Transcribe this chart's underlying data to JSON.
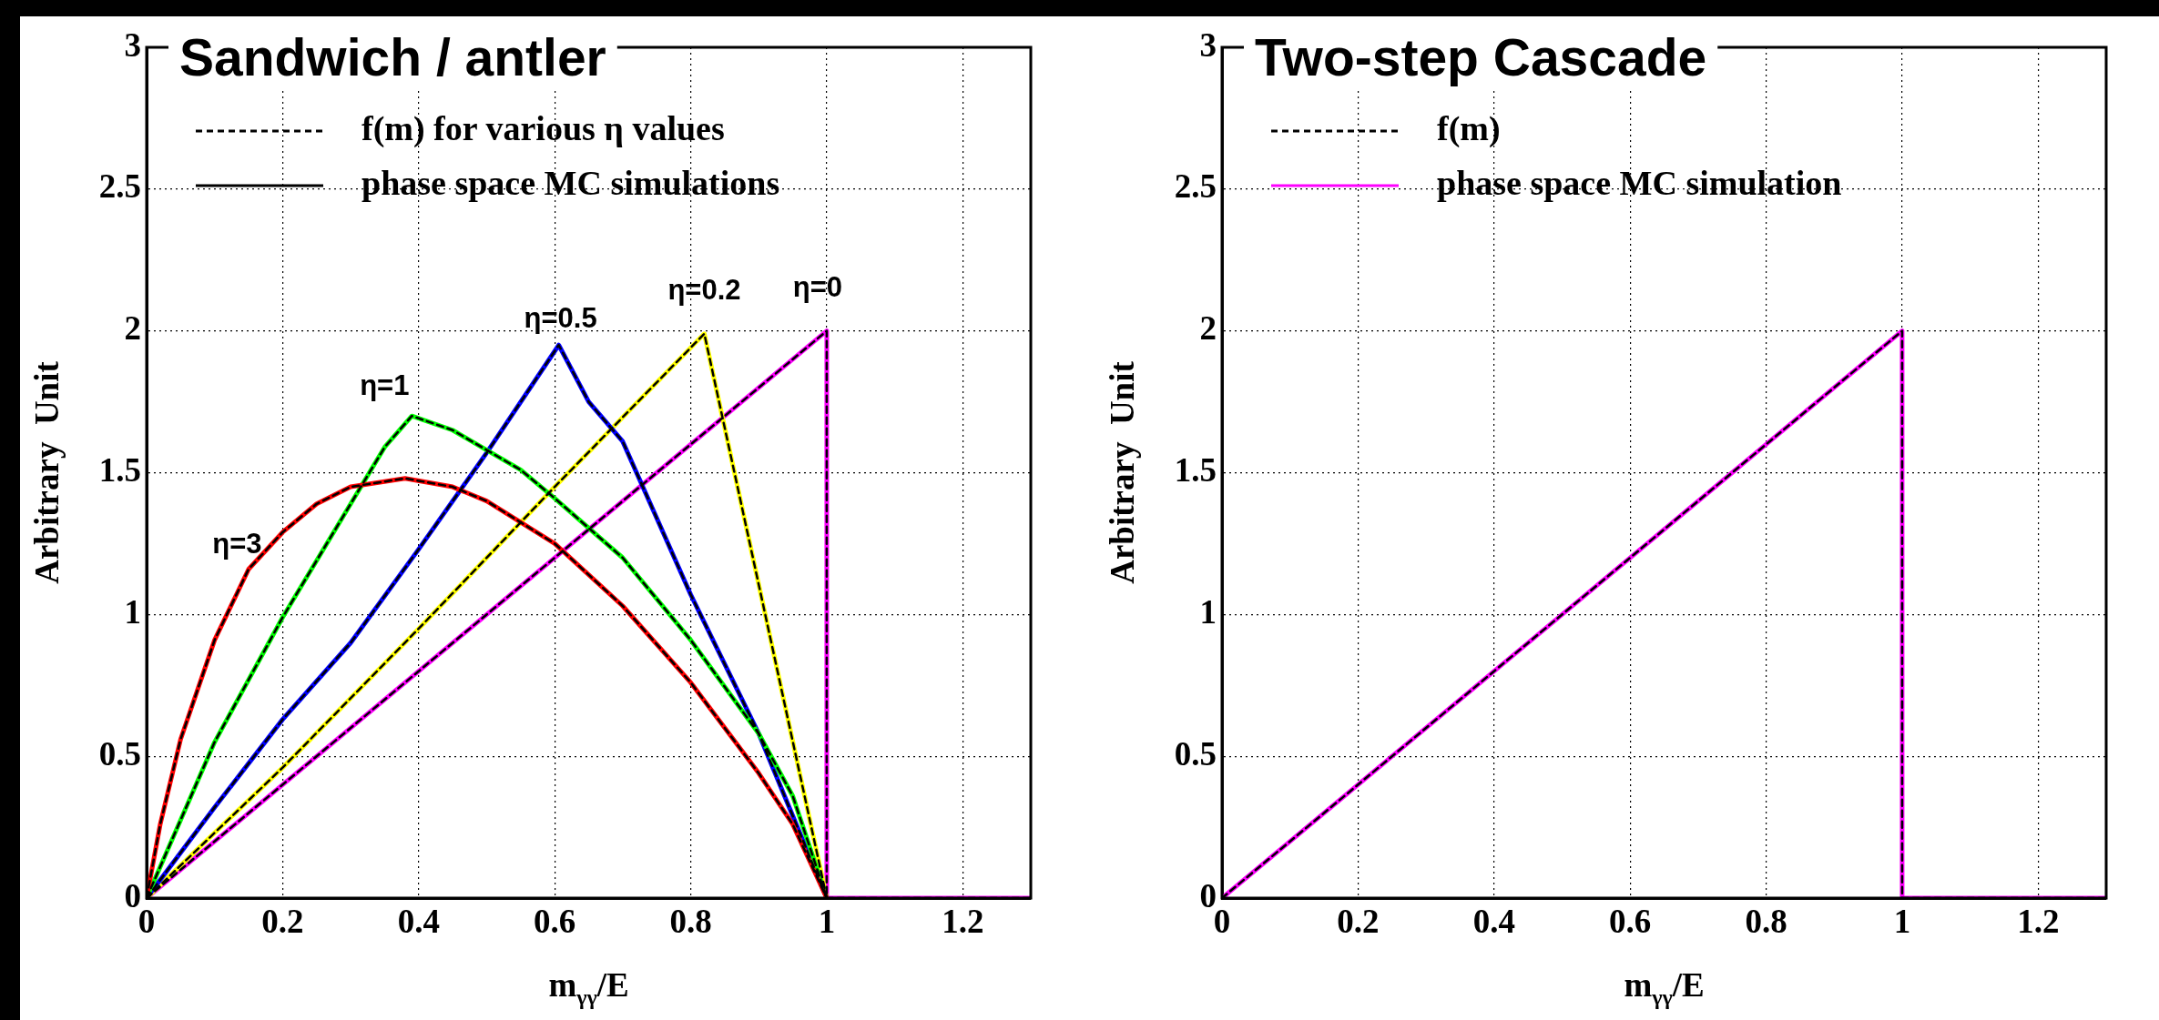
{
  "chart_data": [
    {
      "type": "line",
      "title": "Sandwich / antler",
      "xlabel": "m$_{γγ}$/E",
      "ylabel": "Arbitrary  Unit",
      "xlim": [
        0,
        1.3
      ],
      "ylim": [
        0,
        3
      ],
      "xticks": [
        0,
        0.2,
        0.4,
        0.6,
        0.8,
        1,
        1.2
      ],
      "yticks": [
        0,
        0.5,
        1,
        1.5,
        2,
        2.5,
        3
      ],
      "grid": true,
      "legend": "top left",
      "marker": "none",
      "series": [
        {
          "name": "f(m) for various η values",
          "color": "#000000",
          "line_style": "dashed",
          "x": [
            0,
            0.02,
            0.05,
            0.1,
            0.15,
            0.2,
            0.25,
            0.3,
            0.38,
            0.45,
            0.5,
            0.6,
            0.7,
            0.8,
            0.9,
            0.95,
            1
          ],
          "values": [
            0,
            0.26,
            0.56,
            0.91,
            1.16,
            1.29,
            1.39,
            1.45,
            1.48,
            1.45,
            1.4,
            1.25,
            1.03,
            0.76,
            0.44,
            0.26,
            0
          ]
        },
        {
          "name": "phase space MC simulations",
          "color": "#000000",
          "line_style": "solid"
        },
        {
          "color": "#000000",
          "line_style": "dashed",
          "x": [
            0,
            0.1,
            0.2,
            0.3,
            0.35,
            0.39,
            0.45,
            0.5,
            0.55,
            0.6,
            0.7,
            0.8,
            0.9,
            0.95,
            1
          ],
          "values": [
            0,
            0.55,
            0.99,
            1.39,
            1.59,
            1.7,
            1.65,
            1.58,
            1.51,
            1.41,
            1.2,
            0.91,
            0.58,
            0.36,
            0
          ]
        },
        {
          "color": "#000000",
          "line_style": "dashed",
          "x": [
            0,
            0.1,
            0.2,
            0.3,
            0.4,
            0.5,
            0.606,
            0.65,
            0.7,
            0.8,
            0.9,
            1
          ],
          "values": [
            0,
            0.32,
            0.63,
            0.9,
            1.23,
            1.57,
            1.95,
            1.75,
            1.61,
            1.07,
            0.58,
            0
          ]
        },
        {
          "color": "#000000",
          "line_style": "dashed",
          "x": [
            0,
            0.2,
            0.4,
            0.6,
            0.82,
            1
          ],
          "values": [
            0,
            0.46,
            0.95,
            1.45,
            1.99,
            0
          ]
        },
        {
          "color": "#000000",
          "line_style": "dashed",
          "x": [
            0,
            1,
            1,
            1.3
          ],
          "values": [
            0,
            2,
            0,
            0
          ]
        },
        {
          "color": "#ff0000",
          "line_style": "solid",
          "x": [
            0,
            0.02,
            0.05,
            0.1,
            0.15,
            0.2,
            0.25,
            0.3,
            0.38,
            0.45,
            0.5,
            0.6,
            0.7,
            0.8,
            0.9,
            0.95,
            1
          ],
          "values": [
            0,
            0.26,
            0.56,
            0.91,
            1.16,
            1.29,
            1.39,
            1.45,
            1.48,
            1.45,
            1.4,
            1.25,
            1.03,
            0.76,
            0.44,
            0.26,
            0
          ]
        },
        {
          "color": "#00ff00",
          "line_style": "solid",
          "x": [
            0,
            0.1,
            0.2,
            0.3,
            0.35,
            0.39,
            0.45,
            0.5,
            0.55,
            0.6,
            0.7,
            0.8,
            0.9,
            0.95,
            1
          ],
          "values": [
            0,
            0.55,
            0.99,
            1.39,
            1.59,
            1.7,
            1.65,
            1.58,
            1.51,
            1.41,
            1.2,
            0.91,
            0.58,
            0.36,
            0
          ]
        },
        {
          "color": "#0000ff",
          "line_style": "solid",
          "x": [
            0,
            0.1,
            0.2,
            0.3,
            0.4,
            0.5,
            0.606,
            0.65,
            0.7,
            0.8,
            0.9,
            1
          ],
          "values": [
            0,
            0.32,
            0.63,
            0.9,
            1.23,
            1.57,
            1.95,
            1.75,
            1.61,
            1.07,
            0.58,
            0
          ]
        },
        {
          "color": "#ffff00",
          "line_style": "solid",
          "x": [
            0,
            0.2,
            0.4,
            0.6,
            0.82,
            1
          ],
          "values": [
            0,
            0.46,
            0.95,
            1.45,
            1.99,
            0
          ]
        },
        {
          "color": "#ff00ff",
          "line_style": "solid",
          "x": [
            0,
            1,
            1,
            1.3
          ],
          "values": [
            0,
            2,
            0,
            0
          ]
        }
      ],
      "annotations": [
        {
          "text": "η=3",
          "x": 0.2,
          "y": 1.29
        },
        {
          "text": "η=1",
          "x": 0.39,
          "y": 1.7
        },
        {
          "text": "η=0.5",
          "x": 0.606,
          "y": 1.95
        },
        {
          "text": "η=0.2",
          "x": 0.82,
          "y": 1.99
        },
        {
          "text": "η=0",
          "x": 1,
          "y": 2
        }
      ]
    },
    {
      "type": "line",
      "title": "Two-step Cascade",
      "xlabel": "m$_{γγ}$/E",
      "ylabel": "Arbitrary  Unit",
      "xlim": [
        0,
        1.3
      ],
      "ylim": [
        0,
        3
      ],
      "xticks": [
        0,
        0.2,
        0.4,
        0.6,
        0.8,
        1,
        1.2
      ],
      "yticks": [
        0,
        0.5,
        1,
        1.5,
        2,
        2.5,
        3
      ],
      "grid": true,
      "legend": "top left",
      "marker": "none",
      "series": [
        {
          "name": "f(m)",
          "color": "#000000",
          "line_style": "dashed",
          "x": [
            0,
            1,
            1,
            1.3
          ],
          "values": [
            0,
            2,
            0,
            0
          ]
        },
        {
          "name": "phase space MC simulation",
          "color": "#ff00ff",
          "line_style": "solid",
          "x": [
            0,
            0.25,
            0.5,
            0.75,
            1,
            1,
            1.3
          ],
          "values": [
            0,
            0.5,
            1,
            1.5,
            2,
            0,
            0
          ]
        }
      ]
    }
  ]
}
